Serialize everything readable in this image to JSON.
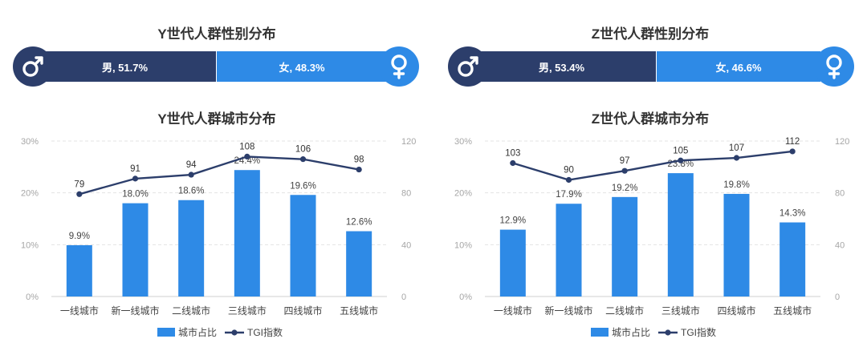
{
  "colors": {
    "male": "#2c3e6b",
    "female": "#2e8ae6",
    "bar": "#2e8ae6",
    "line": "#2c3e6b",
    "grid": "#e3e3e3"
  },
  "icons": {
    "male": "male-symbol-icon",
    "female": "female-symbol-icon"
  },
  "panels": [
    {
      "gender_title": "Y世代人群性别分布",
      "male_label": "男, 51.7%",
      "female_label": "女, 48.3%",
      "male_share": 51.7,
      "female_share": 48.3,
      "city_title": "Y世代人群城市分布",
      "legend": {
        "bar": "城市占比",
        "line": "TGI指数"
      }
    },
    {
      "gender_title": "Z世代人群性别分布",
      "male_label": "男, 53.4%",
      "female_label": "女, 46.6%",
      "male_share": 53.4,
      "female_share": 46.6,
      "city_title": "Z世代人群城市分布",
      "legend": {
        "bar": "城市占比",
        "line": "TGI指数"
      }
    }
  ],
  "chart_data": [
    {
      "type": "bar",
      "title": "Y世代人群城市分布",
      "categories": [
        "一线城市",
        "新一线城市",
        "二线城市",
        "三线城市",
        "四线城市",
        "五线城市"
      ],
      "series": [
        {
          "name": "城市占比",
          "type": "bar",
          "axis": "left",
          "values": [
            9.9,
            18.0,
            18.6,
            24.4,
            19.6,
            12.6
          ],
          "labels": [
            "9.9%",
            "18.0%",
            "18.6%",
            "24.4%",
            "19.6%",
            "12.6%"
          ]
        },
        {
          "name": "TGI指数",
          "type": "line",
          "axis": "right",
          "values": [
            79,
            91,
            94,
            108,
            106,
            98
          ],
          "labels": [
            "79",
            "91",
            "94",
            "108",
            "106",
            "98"
          ]
        }
      ],
      "ylim_left": [
        0,
        30
      ],
      "ylim_right": [
        0,
        120
      ],
      "left_ticks": [
        "0%",
        "10%",
        "20%",
        "30%"
      ],
      "right_ticks": [
        "0",
        "40",
        "80",
        "120"
      ],
      "grid": true,
      "legend_position": "bottom"
    },
    {
      "type": "bar",
      "title": "Z世代人群城市分布",
      "categories": [
        "一线城市",
        "新一线城市",
        "二线城市",
        "三线城市",
        "四线城市",
        "五线城市"
      ],
      "series": [
        {
          "name": "城市占比",
          "type": "bar",
          "axis": "left",
          "values": [
            12.9,
            17.9,
            19.2,
            23.8,
            19.8,
            14.3
          ],
          "labels": [
            "12.9%",
            "17.9%",
            "19.2%",
            "23.8%",
            "19.8%",
            "14.3%"
          ]
        },
        {
          "name": "TGI指数",
          "type": "line",
          "axis": "right",
          "values": [
            103,
            90,
            97,
            105,
            107,
            112
          ],
          "labels": [
            "103",
            "90",
            "97",
            "105",
            "107",
            "112"
          ]
        }
      ],
      "ylim_left": [
        0,
        30
      ],
      "ylim_right": [
        0,
        120
      ],
      "left_ticks": [
        "0%",
        "10%",
        "20%",
        "30%"
      ],
      "right_ticks": [
        "0",
        "40",
        "80",
        "120"
      ],
      "grid": true,
      "legend_position": "bottom"
    }
  ]
}
